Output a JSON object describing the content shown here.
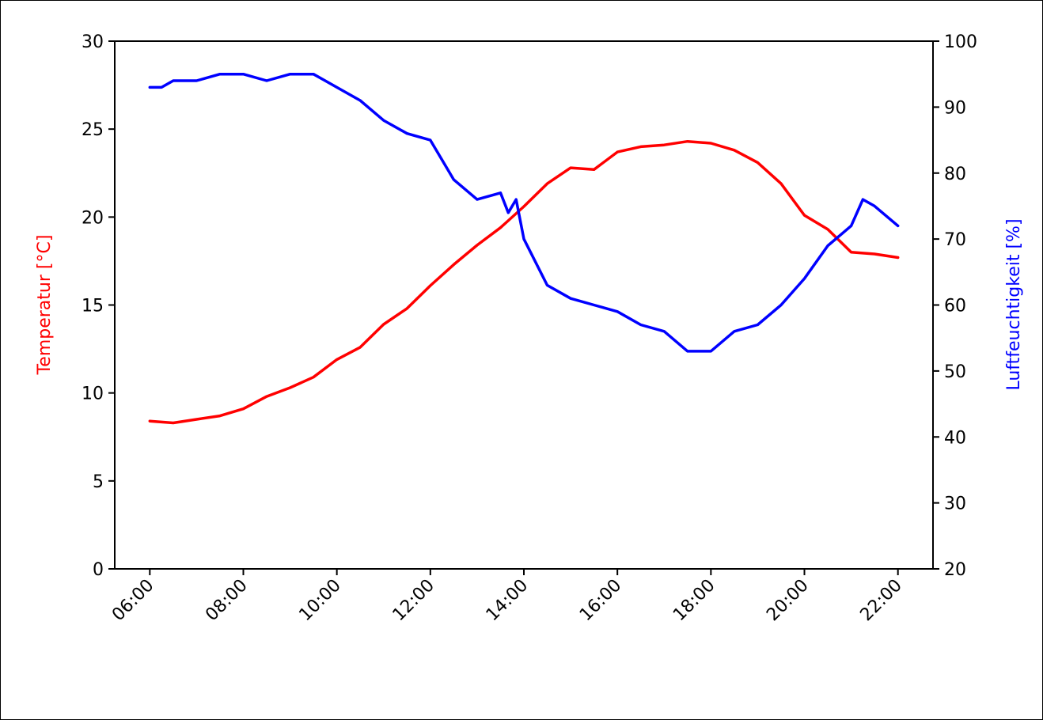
{
  "chart_data": {
    "type": "line",
    "title": "",
    "xlabel": "",
    "x_ticks": [
      "06:00",
      "08:00",
      "10:00",
      "12:00",
      "14:00",
      "16:00",
      "18:00",
      "20:00",
      "22:00"
    ],
    "xlim": [
      "05:15",
      "22:45"
    ],
    "y_left": {
      "label": "Temperatur [°C]",
      "color": "#ff0000",
      "ylim": [
        0,
        30
      ],
      "ticks": [
        "0",
        "5",
        "10",
        "15",
        "20",
        "25",
        "30"
      ]
    },
    "y_right": {
      "label": "Luftfeuchtigkeit [%]",
      "color": "#0000ff",
      "ylim": [
        20,
        100
      ],
      "ticks": [
        "20",
        "30",
        "40",
        "50",
        "60",
        "70",
        "80",
        "90",
        "100"
      ]
    },
    "grid": false,
    "series": [
      {
        "name": "",
        "axis": "left",
        "color": "#ff0000",
        "x": [
          "06:00",
          "06:30",
          "07:00",
          "07:30",
          "08:00",
          "08:30",
          "09:00",
          "09:30",
          "10:00",
          "10:30",
          "11:00",
          "11:30",
          "12:00",
          "12:30",
          "13:00",
          "13:30",
          "14:00",
          "14:30",
          "15:00",
          "15:30",
          "16:00",
          "16:30",
          "17:00",
          "17:30",
          "18:00",
          "18:30",
          "19:00",
          "19:30",
          "20:00",
          "20:30",
          "21:00",
          "21:30",
          "22:00"
        ],
        "values": [
          8.4,
          8.3,
          8.5,
          8.7,
          9.1,
          9.8,
          10.3,
          10.9,
          11.9,
          12.6,
          13.9,
          14.8,
          16.1,
          17.3,
          18.4,
          19.4,
          20.6,
          21.9,
          22.8,
          22.7,
          23.7,
          24.0,
          24.1,
          24.3,
          24.2,
          23.8,
          23.1,
          21.9,
          20.1,
          19.3,
          18.0,
          17.9,
          17.7
        ]
      },
      {
        "name": "",
        "axis": "right",
        "color": "#0000ff",
        "x": [
          "06:00",
          "06:15",
          "06:30",
          "07:00",
          "07:30",
          "08:00",
          "08:30",
          "09:00",
          "09:30",
          "09:45",
          "10:00",
          "10:30",
          "11:00",
          "11:30",
          "12:00",
          "12:15",
          "12:30",
          "13:00",
          "13:30",
          "13:40",
          "13:50",
          "14:00",
          "14:30",
          "15:00",
          "15:30",
          "16:00",
          "16:30",
          "17:00",
          "17:30",
          "18:00",
          "18:30",
          "19:00",
          "19:30",
          "20:00",
          "20:30",
          "20:50",
          "21:00",
          "21:15",
          "21:30",
          "22:00"
        ],
        "values": [
          93,
          93,
          94,
          94,
          95,
          95,
          94,
          95,
          95,
          94,
          93,
          91,
          88,
          86,
          85,
          82,
          79,
          76,
          77,
          74,
          76,
          70,
          63,
          61,
          60,
          59,
          57,
          56,
          53,
          53,
          56,
          57,
          60,
          64,
          69,
          71,
          72,
          76,
          75,
          72
        ]
      }
    ]
  }
}
